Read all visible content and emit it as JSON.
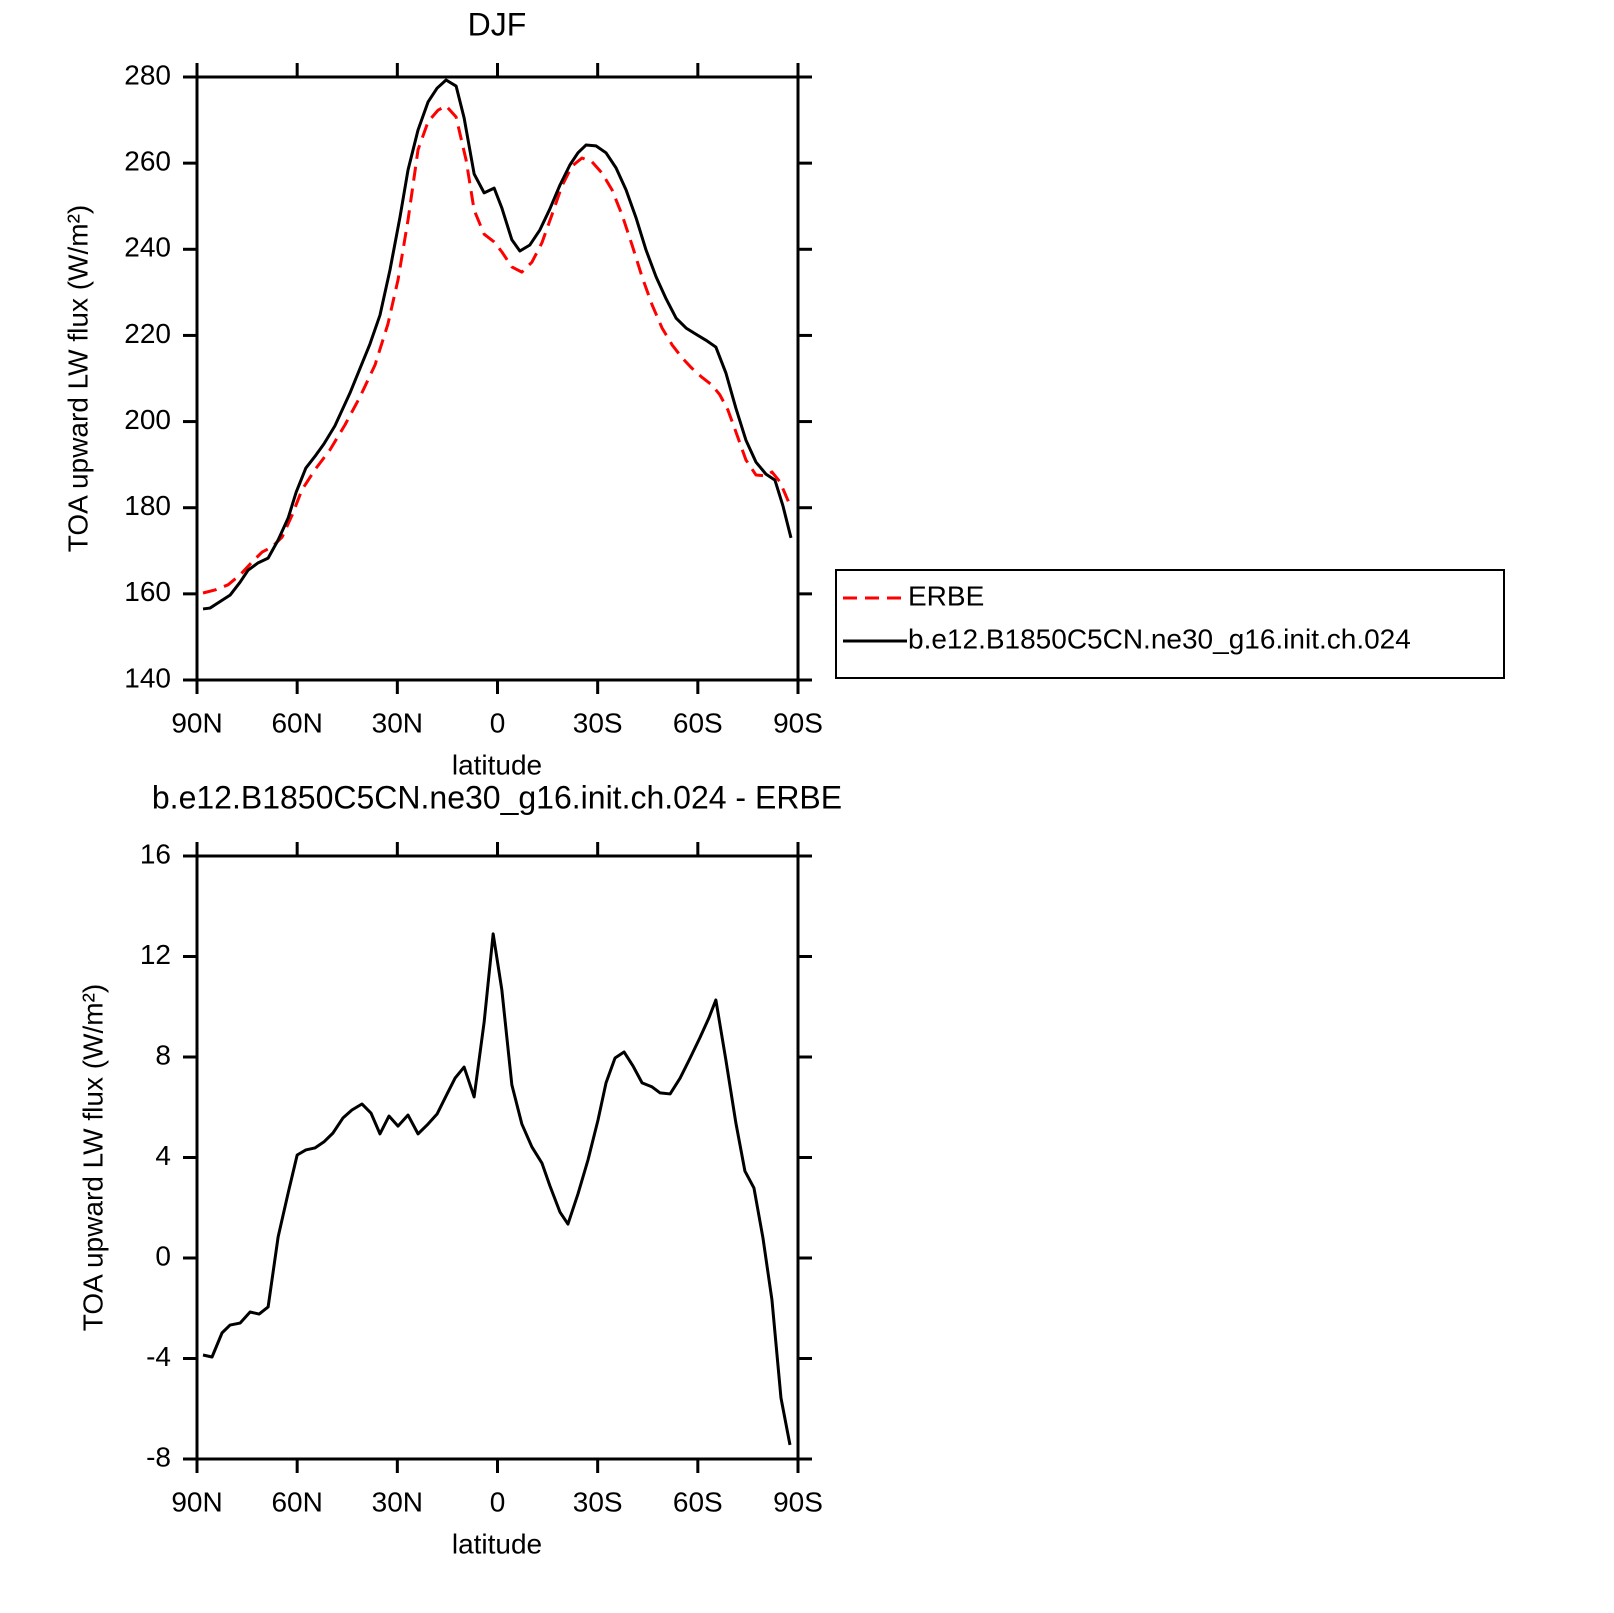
{
  "chart_data": [
    {
      "type": "line",
      "title": "DJF",
      "xlabel": "latitude",
      "ylabel": "TOA upward LW flux (W/m²)",
      "xlim": [
        90,
        -90
      ],
      "ylim": [
        140,
        280
      ],
      "xticks": [
        {
          "value": 90,
          "label": "90N"
        },
        {
          "value": 60,
          "label": "60N"
        },
        {
          "value": 30,
          "label": "30N"
        },
        0,
        {
          "value": -30,
          "label": "30S"
        },
        {
          "value": -60,
          "label": "60S"
        },
        {
          "value": -90,
          "label": "90S"
        }
      ],
      "yticks": [
        140,
        160,
        180,
        200,
        220,
        240,
        260,
        280
      ],
      "legend": "right",
      "series": [
        {
          "name": "ERBE",
          "color": "#ff0000",
          "dashed": true,
          "x": [
            88.2,
            84.6,
            80.7,
            77.1,
            73.5,
            70.5,
            67.5,
            64.5,
            61.5,
            58.6,
            54.7,
            50.2,
            45.7,
            41.2,
            36.7,
            32.8,
            29.8,
            26.8,
            23.8,
            20.8,
            17.8,
            15.4,
            12.4,
            9.4,
            7.0,
            4.0,
            1.0,
            -1.3,
            -4.3,
            -7.3,
            -10.3,
            -13.3,
            -16.3,
            -19.3,
            -22.3,
            -25.3,
            -28.3,
            -31.3,
            -34.3,
            -37.3,
            -40.3,
            -43.3,
            -46.3,
            -49.3,
            -52.3,
            -55.3,
            -58.2,
            -61.2,
            -64.2,
            -66.6,
            -69.0,
            -71.4,
            -74.4,
            -77.4,
            -80.4,
            -82.2,
            -84.6,
            -87.6
          ],
          "values": [
            160.2,
            160.9,
            162.1,
            164.4,
            167.4,
            169.7,
            170.9,
            173.2,
            178.3,
            184.1,
            188.8,
            193.4,
            199.2,
            205.7,
            213.1,
            222.7,
            232.9,
            246.8,
            263.1,
            269.6,
            272.3,
            273.3,
            270.7,
            260.7,
            249.1,
            243.5,
            241.7,
            239.4,
            235.9,
            234.7,
            237.0,
            241.5,
            248.0,
            254.7,
            259.3,
            261.2,
            260.3,
            257.7,
            253.8,
            248.0,
            241.0,
            233.6,
            227.1,
            221.7,
            217.8,
            214.8,
            212.4,
            210.3,
            208.5,
            206.2,
            202.7,
            197.6,
            191.1,
            187.6,
            187.4,
            188.3,
            186.0,
            180.6
          ]
        },
        {
          "name": "b.e12.B1850C5CN.ne30_g16.init.ch.024",
          "color": "#000000",
          "dashed": false,
          "x": [
            88.2,
            86.1,
            83.7,
            80.1,
            77.1,
            74.7,
            71.7,
            68.7,
            65.7,
            62.7,
            60.3,
            57.4,
            54.4,
            52.0,
            48.7,
            44.2,
            38.2,
            35.2,
            32.2,
            29.2,
            26.8,
            23.8,
            20.8,
            18.1,
            15.4,
            12.4,
            10.0,
            7.0,
            4.0,
            1.0,
            -1.3,
            -4.3,
            -6.7,
            -9.7,
            -12.7,
            -15.7,
            -18.7,
            -21.7,
            -24.1,
            -26.5,
            -29.5,
            -32.5,
            -35.5,
            -38.5,
            -41.5,
            -44.5,
            -47.5,
            -50.5,
            -53.5,
            -56.5,
            -59.4,
            -62.4,
            -65.4,
            -68.4,
            -71.4,
            -74.4,
            -77.4,
            -80.4,
            -83.1,
            -85.5,
            -87.9
          ],
          "values": [
            156.5,
            156.7,
            157.9,
            159.7,
            162.7,
            165.5,
            167.2,
            168.3,
            172.5,
            177.6,
            183.6,
            189.2,
            192.2,
            194.8,
            199.0,
            206.6,
            218.0,
            224.7,
            235.2,
            247.5,
            258.4,
            267.7,
            274.2,
            277.4,
            279.3,
            277.9,
            270.5,
            257.5,
            253.1,
            254.2,
            249.6,
            242.2,
            239.6,
            241.0,
            244.5,
            249.4,
            254.9,
            259.6,
            262.4,
            264.2,
            264.0,
            262.4,
            258.9,
            253.8,
            247.3,
            239.8,
            233.6,
            228.5,
            224.0,
            221.7,
            220.3,
            218.9,
            217.3,
            211.3,
            203.1,
            195.7,
            190.6,
            187.8,
            186.4,
            180.4,
            173.0
          ]
        }
      ]
    },
    {
      "type": "line",
      "title": "b.e12.B1850C5CN.ne30_g16.init.ch.024 - ERBE",
      "xlabel": "latitude",
      "ylabel": "TOA upward LW flux (W/m²)",
      "xlim": [
        90,
        -90
      ],
      "ylim": [
        -8,
        16
      ],
      "xticks": [
        {
          "value": 90,
          "label": "90N"
        },
        {
          "value": 60,
          "label": "60N"
        },
        {
          "value": 30,
          "label": "30N"
        },
        0,
        {
          "value": -30,
          "label": "30S"
        },
        {
          "value": -60,
          "label": "60S"
        },
        {
          "value": -90,
          "label": "90S"
        }
      ],
      "yticks": [
        -8,
        -4,
        0,
        4,
        8,
        12,
        16
      ],
      "series": [
        {
          "color": "#000000",
          "dashed": false,
          "x": [
            88.2,
            85.5,
            82.5,
            80.1,
            77.1,
            74.1,
            71.4,
            68.7,
            65.7,
            62.7,
            60.0,
            57.4,
            54.7,
            52.0,
            49.3,
            46.3,
            43.6,
            40.6,
            37.9,
            35.2,
            32.5,
            29.8,
            26.8,
            23.8,
            21.1,
            18.1,
            15.4,
            12.7,
            10.0,
            7.0,
            4.0,
            1.3,
            -1.3,
            -4.3,
            -7.3,
            -10.3,
            -13.3,
            -15.7,
            -18.7,
            -21.1,
            -24.1,
            -27.1,
            -30.1,
            -32.5,
            -35.2,
            -37.9,
            -40.6,
            -43.3,
            -46.3,
            -48.7,
            -51.7,
            -54.7,
            -57.7,
            -60.6,
            -63.3,
            -65.4,
            -68.4,
            -71.4,
            -74.1,
            -76.8,
            -79.5,
            -82.2,
            -84.9,
            -87.6
          ],
          "values": [
            -3.86,
            -3.94,
            -2.98,
            -2.67,
            -2.59,
            -2.15,
            -2.23,
            -1.95,
            0.84,
            2.59,
            4.1,
            4.3,
            4.38,
            4.62,
            4.97,
            5.57,
            5.89,
            6.13,
            5.77,
            4.94,
            5.65,
            5.25,
            5.69,
            4.94,
            5.29,
            5.73,
            6.45,
            7.16,
            7.6,
            6.41,
            9.39,
            12.9,
            10.67,
            6.89,
            5.33,
            4.42,
            3.78,
            2.87,
            1.83,
            1.35,
            2.55,
            3.9,
            5.49,
            6.97,
            7.96,
            8.2,
            7.64,
            6.97,
            6.81,
            6.57,
            6.53,
            7.16,
            7.96,
            8.76,
            9.55,
            10.27,
            7.88,
            5.37,
            3.46,
            2.79,
            0.8,
            -1.67,
            -5.57,
            -7.44
          ]
        }
      ]
    }
  ]
}
